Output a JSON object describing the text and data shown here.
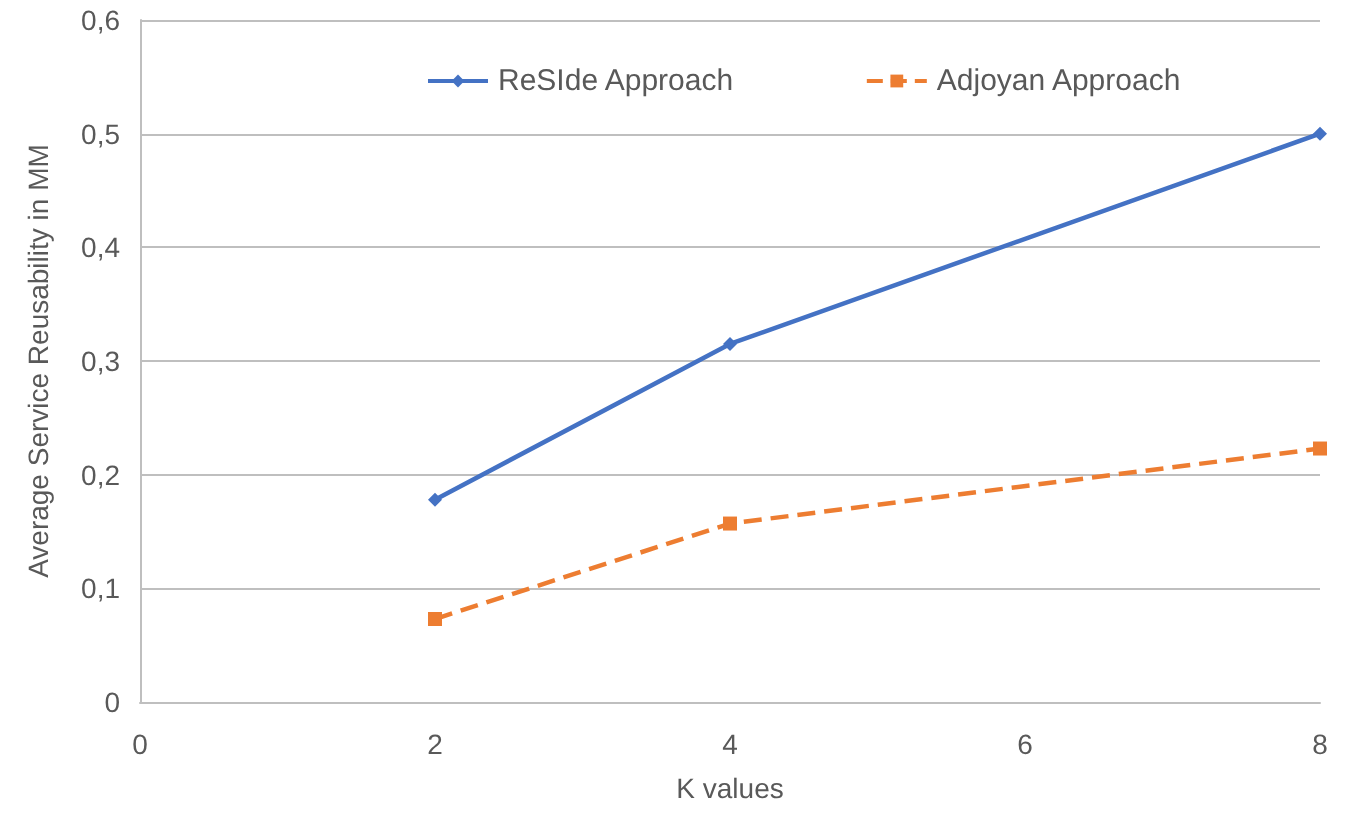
{
  "chart_data": {
    "type": "line",
    "xlabel": "K values",
    "ylabel": "Average Service Reusability in MM",
    "x": [
      2,
      4,
      8
    ],
    "series": [
      {
        "name": "ReSIde Approach",
        "color": "#4472c4",
        "values": [
          0.178,
          0.315,
          0.5
        ],
        "marker": "diamond",
        "line_style": "solid"
      },
      {
        "name": "Adjoyan Approach",
        "color": "#ed7d31",
        "values": [
          0.073,
          0.157,
          0.223
        ],
        "marker": "square",
        "line_style": "dashed"
      }
    ],
    "xlim": [
      0,
      8
    ],
    "xticks": [
      0,
      2,
      4,
      6,
      8
    ],
    "ylim": [
      0,
      0.6
    ],
    "yticks": [
      0,
      {
        "value": 0.1,
        "label": "0,1"
      },
      {
        "value": 0.2,
        "label": "0,2"
      },
      {
        "value": 0.3,
        "label": "0,3"
      },
      {
        "value": 0.4,
        "label": "0,4"
      },
      {
        "value": 0.5,
        "label": "0,5"
      },
      {
        "value": 0.6,
        "label": "0,6"
      }
    ],
    "grid": "y",
    "legend": "top"
  }
}
